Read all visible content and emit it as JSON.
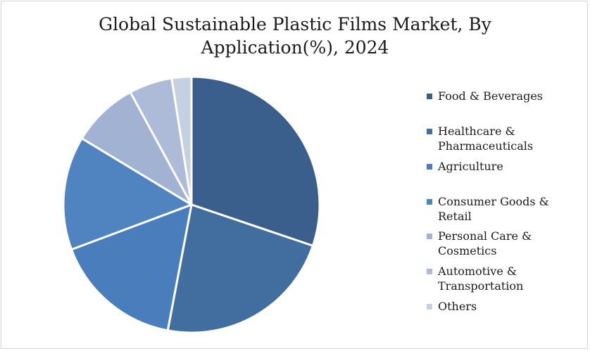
{
  "chart_data": {
    "type": "pie",
    "title": "Global Sustainable Plastic Films Market, By Application(%), 2024",
    "categories": [
      "Food & Beverages",
      "Healthcare & Pharmaceuticals",
      "Agriculture",
      "Consumer Goods & Retail",
      "Personal Care & Cosmetics",
      "Automotive & Transportation",
      "Others"
    ],
    "values": [
      30.5,
      23,
      16.5,
      14.5,
      8.5,
      5.5,
      2.5
    ],
    "colors": [
      "#3b5f8c",
      "#416e9f",
      "#4a7dbb",
      "#4f84c0",
      "#a1b2d2",
      "#adbbd9",
      "#c5d0e3"
    ],
    "legend_position": "right"
  }
}
